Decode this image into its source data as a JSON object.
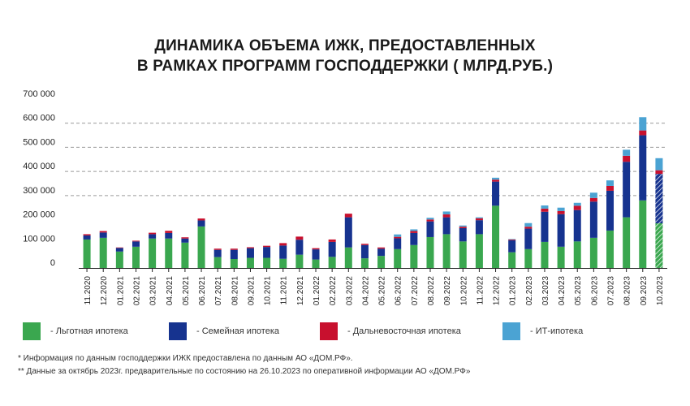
{
  "title": {
    "line1": "ДИНАМИКА ОБЪЕМА ИЖК, ПРЕДОСТАВЛЕННЫХ",
    "line2": "В РАМКАХ ПРОГРАММ ГОСПОДДЕРЖКИ ( МЛРД.РУБ.)"
  },
  "legend": [
    {
      "label": "- Льготная ипотека",
      "color": "#3aa74f"
    },
    {
      "label": "- Семейная ипотека",
      "color": "#16338f"
    },
    {
      "label": "- Дальневосточная ипотека",
      "color": "#c8102e"
    },
    {
      "label": "- ИТ-ипотека",
      "color": "#4ba3d3"
    }
  ],
  "footnotes": {
    "note1": "* Информация по данным господдержки ИЖК предоставлена по данным АО «ДОМ.РФ».",
    "note2": "** Данные за октябрь 2023г. предварительные по состоянию на 26.10.2023 по оперативной информации АО «ДОМ.РФ»"
  },
  "chart_data": {
    "type": "bar",
    "stacked": true,
    "title": "ДИНАМИКА ОБЪЕМА ИЖК, ПРЕДОСТАВЛЕННЫХ В РАМКАХ ПРОГРАММ ГОСПОДДЕРЖКИ ( МЛРД.РУБ.)",
    "ylim": [
      0,
      700000
    ],
    "yticks": [
      "0",
      "100 000",
      "200 000",
      "300 000",
      "400 000",
      "500 000",
      "600 000",
      "700 000"
    ],
    "ytick_values": [
      0,
      100000,
      200000,
      300000,
      400000,
      500000,
      600000,
      700000
    ],
    "grid": "dashed horizontal lines from 300 000 to 600 000",
    "categories": [
      "11.2020",
      "12.2020",
      "01.2021",
      "02.2021",
      "03.2021",
      "04.2021",
      "05.2021",
      "06.2021",
      "07.2021",
      "08.2021",
      "09.2021",
      "10.2021",
      "11.2021",
      "12.2021",
      "01.2022",
      "02.2022",
      "03.2022",
      "04.2022",
      "05.2022",
      "06.2022",
      "07.2022",
      "08.2022",
      "09.2022",
      "10.2022",
      "11.2022",
      "12.2022",
      "01.2023",
      "02.2023",
      "03.2023",
      "04.2023",
      "05.2023",
      "06.2023",
      "07.2023",
      "08.2023",
      "09.2023",
      "10.2023"
    ],
    "hatched_category": "10.2023",
    "series": [
      {
        "name": "Льготная ипотека",
        "color": "#3aa74f",
        "values": [
          118000,
          125000,
          68000,
          88000,
          122000,
          122000,
          105000,
          172000,
          45000,
          37000,
          42000,
          42000,
          38000,
          55000,
          35000,
          46000,
          85000,
          40000,
          50000,
          78000,
          95000,
          128000,
          140000,
          110000,
          140000,
          258000,
          65000,
          78000,
          108000,
          88000,
          110000,
          125000,
          155000,
          210000,
          280000,
          185000
        ]
      },
      {
        "name": "Семейная ипотека",
        "color": "#16338f",
        "values": [
          17000,
          22000,
          15000,
          22000,
          18000,
          23000,
          17000,
          25000,
          30000,
          38000,
          40000,
          45000,
          55000,
          62000,
          42000,
          62000,
          125000,
          55000,
          30000,
          45000,
          50000,
          65000,
          70000,
          55000,
          58000,
          100000,
          50000,
          85000,
          125000,
          135000,
          130000,
          150000,
          165000,
          230000,
          270000,
          205000
        ]
      },
      {
        "name": "Дальневосточная ипотека",
        "color": "#c8102e",
        "values": [
          5000,
          6000,
          2000,
          3000,
          6000,
          9000,
          5000,
          8000,
          5000,
          5000,
          4000,
          5000,
          10000,
          13000,
          5000,
          10000,
          15000,
          5000,
          5000,
          6000,
          8000,
          8000,
          12000,
          6000,
          8000,
          8000,
          3000,
          8000,
          13000,
          13000,
          18000,
          15000,
          20000,
          25000,
          20000,
          15000
        ]
      },
      {
        "name": "ИТ-ипотека",
        "color": "#4ba3d3",
        "values": [
          0,
          0,
          0,
          0,
          0,
          0,
          0,
          0,
          0,
          0,
          0,
          0,
          0,
          0,
          0,
          0,
          0,
          0,
          0,
          10000,
          7000,
          7000,
          12000,
          5000,
          4000,
          8000,
          2000,
          15000,
          13000,
          14000,
          12000,
          22000,
          23000,
          25000,
          55000,
          50000
        ]
      }
    ]
  }
}
